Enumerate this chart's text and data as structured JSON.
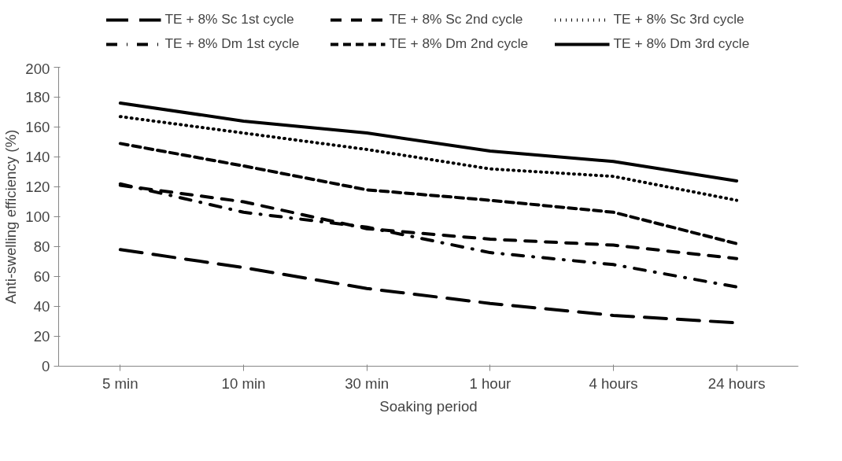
{
  "chart_data": {
    "type": "line",
    "xlabel": "Soaking period",
    "ylabel": "Anti-swelling efficiency (%)",
    "categories": [
      "5 min",
      "10 min",
      "30 min",
      "1 hour",
      "4 hours",
      "24 hours"
    ],
    "series": [
      {
        "name": "TE + 8% Sc 1st cycle",
        "color": "#000000",
        "line_style": "longdash",
        "values": [
          78,
          66,
          52,
          42,
          34,
          29
        ]
      },
      {
        "name": "TE + 8% Sc 2nd cycle",
        "color": "#000000",
        "line_style": "dashed",
        "values": [
          121,
          110,
          92,
          85,
          81,
          72
        ]
      },
      {
        "name": "TE + 8% Sc 3rd cycle",
        "color": "#000000",
        "line_style": "dotted",
        "values": [
          167,
          156,
          145,
          132,
          127,
          111
        ]
      },
      {
        "name": "TE + 8% Dm 1st cycle",
        "color": "#000000",
        "line_style": "dashdot",
        "values": [
          122,
          103,
          93,
          76,
          68,
          53
        ]
      },
      {
        "name": "TE + 8% Dm 2nd cycle",
        "color": "#000000",
        "line_style": "shortdash",
        "values": [
          149,
          134,
          118,
          111,
          103,
          82
        ]
      },
      {
        "name": "TE + 8% Dm 3rd cycle",
        "color": "#000000",
        "line_style": "solid",
        "values": [
          176,
          164,
          156,
          144,
          137,
          124
        ]
      }
    ],
    "ylim": [
      0,
      200
    ],
    "yticks": [
      0,
      20,
      40,
      60,
      80,
      100,
      120,
      140,
      160,
      180,
      200
    ],
    "grid": false,
    "legend": "top",
    "marker": "none"
  }
}
